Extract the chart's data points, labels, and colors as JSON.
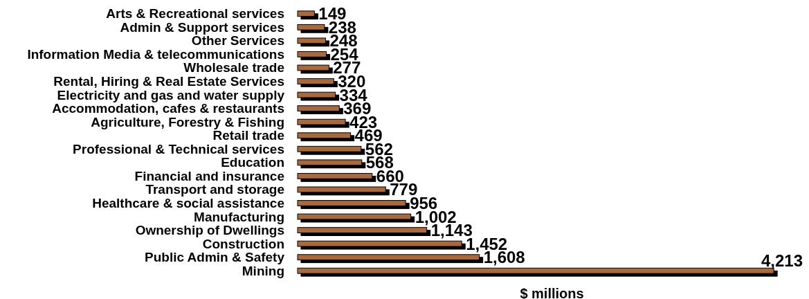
{
  "chart_data": {
    "type": "bar",
    "orientation": "horizontal",
    "categories": [
      "Arts & Recreational services",
      "Admin & Support services",
      "Other Services",
      "Information Media & telecommunications",
      "Wholesale trade",
      "Rental, Hiring & Real Estate Services",
      "Electricity and gas and water supply",
      "Accommodation, cafes & restaurants",
      "Agriculture, Forestry & Fishing",
      "Retail trade",
      "Professional & Technical services",
      "Education",
      "Financial and insurance",
      "Transport and storage",
      "Healthcare & social assistance",
      "Manufacturing",
      "Ownership of Dwellings",
      "Construction",
      "Public Admin & Safety",
      "Mining"
    ],
    "values": [
      149,
      238,
      248,
      254,
      277,
      320,
      334,
      369,
      423,
      469,
      562,
      568,
      660,
      779,
      956,
      1002,
      1143,
      1452,
      1608,
      4213
    ],
    "value_labels": [
      "149",
      "238",
      "248",
      "254",
      "277",
      "320",
      "334",
      "369",
      "423",
      "469",
      "562",
      "568",
      "660",
      "779",
      "956",
      "1,002",
      "1,143",
      "1,452",
      "1,608",
      "4,213"
    ],
    "color": "#a86a3c",
    "xlabel": "$ millions",
    "xlim": [
      0,
      4500
    ],
    "tick_labels": "y"
  }
}
